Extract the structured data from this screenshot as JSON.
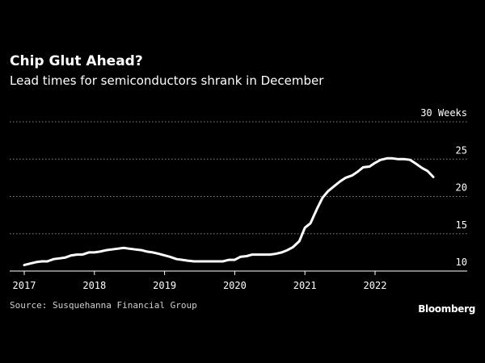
{
  "title": "Chip Glut Ahead?",
  "subtitle": "Lead times for semiconductors shrank in December",
  "source": "Source: Susquehanna Financial Group",
  "brand": "Bloomberg",
  "colors": {
    "background": "#000000",
    "line": "#ffffff",
    "grid": "#8a8a8a",
    "text": "#ffffff"
  },
  "chart_data": {
    "type": "line",
    "title": "Chip Glut Ahead?",
    "subtitle": "Lead times for semiconductors shrank in December",
    "unit": "Weeks",
    "xlabel": "",
    "ylabel": "",
    "ylim": [
      10,
      30
    ],
    "xlim": [
      2017,
      2023.2
    ],
    "grid": "horizontal dotted",
    "y_ticks": [
      {
        "value": 10,
        "label": "10"
      },
      {
        "value": 15,
        "label": "15"
      },
      {
        "value": 20,
        "label": "20"
      },
      {
        "value": 25,
        "label": "25"
      },
      {
        "value": 30,
        "label": "30 Weeks"
      }
    ],
    "x_ticks": [
      {
        "value": 2017,
        "label": "2017"
      },
      {
        "value": 2018,
        "label": "2018"
      },
      {
        "value": 2019,
        "label": "2019"
      },
      {
        "value": 2020,
        "label": "2020"
      },
      {
        "value": 2021,
        "label": "2021"
      },
      {
        "value": 2022,
        "label": "2022"
      }
    ],
    "series": [
      {
        "x": [
          2017.0,
          2017.08,
          2017.17,
          2017.25,
          2017.33,
          2017.42,
          2017.5,
          2017.58,
          2017.67,
          2017.75,
          2017.83,
          2017.92,
          2018.0,
          2018.08,
          2018.17,
          2018.25,
          2018.33,
          2018.42,
          2018.5,
          2018.58,
          2018.67,
          2018.75,
          2018.83,
          2018.92,
          2019.0,
          2019.08,
          2019.17,
          2019.25,
          2019.33,
          2019.42,
          2019.5,
          2019.58,
          2019.67,
          2019.75,
          2019.83,
          2019.92,
          2020.0,
          2020.08,
          2020.17,
          2020.25,
          2020.33,
          2020.42,
          2020.5,
          2020.58,
          2020.67,
          2020.75,
          2020.83,
          2020.92,
          2021.0,
          2021.08,
          2021.17,
          2021.25,
          2021.33,
          2021.42,
          2021.5,
          2021.58,
          2021.67,
          2021.75,
          2021.83,
          2021.92,
          2022.0,
          2022.08,
          2022.17,
          2022.25,
          2022.33,
          2022.42,
          2022.5,
          2022.58,
          2022.67,
          2022.75,
          2022.83,
          2022.92
        ],
        "values": [
          10.8,
          11.0,
          11.2,
          11.3,
          11.3,
          11.6,
          11.7,
          11.8,
          12.1,
          12.2,
          12.2,
          12.5,
          12.5,
          12.6,
          12.8,
          12.9,
          13.0,
          13.1,
          13.0,
          12.9,
          12.8,
          12.6,
          12.5,
          12.3,
          12.1,
          11.9,
          11.6,
          11.5,
          11.4,
          11.3,
          11.3,
          11.3,
          11.3,
          11.3,
          11.3,
          11.5,
          11.5,
          11.9,
          12.0,
          12.2,
          12.2,
          12.2,
          12.2,
          12.3,
          12.5,
          12.8,
          13.2,
          14.0,
          15.8,
          16.4,
          18.3,
          19.8,
          20.7,
          21.4,
          22.0,
          22.5,
          22.8,
          23.3,
          23.9,
          24.0,
          24.5,
          24.9,
          25.1,
          25.1,
          25.0,
          25.0,
          24.9,
          24.4,
          23.8,
          23.4,
          22.6,
          null
        ]
      }
    ]
  }
}
